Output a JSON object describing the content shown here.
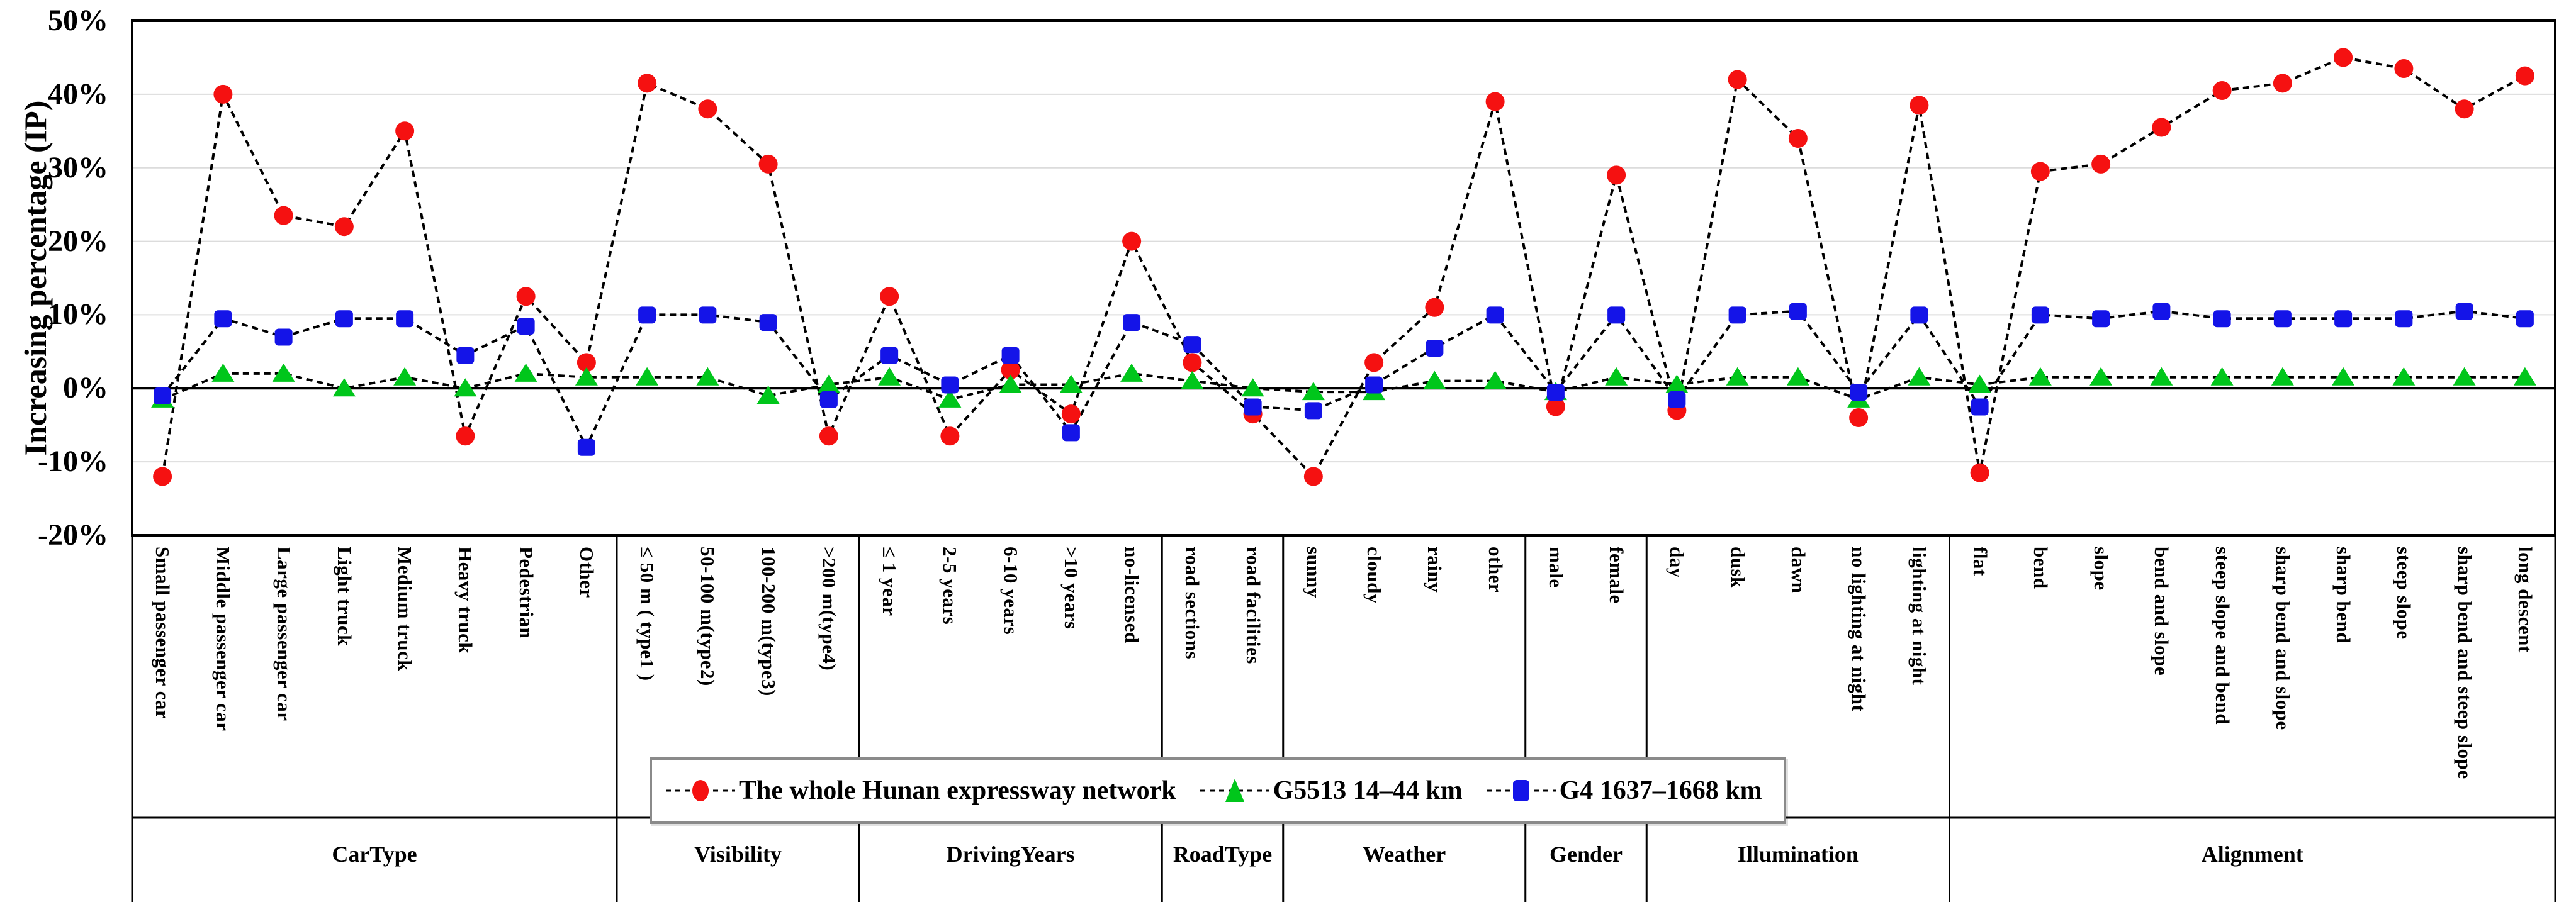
{
  "chart_data": {
    "type": "line",
    "title": "",
    "ylabel": "Increasing percentage (IP)",
    "xlabel": "",
    "ylim": [
      -20,
      50
    ],
    "ytick_step": 10,
    "y_ticks": [
      "50%",
      "40%",
      "30%",
      "20%",
      "10%",
      "0%",
      "-10%",
      "-20%"
    ],
    "grid": true,
    "gridline_color": "#dcdcdc",
    "line_color": "#000000",
    "line_style": "dashed",
    "legend_position": "bottom-center",
    "groups": [
      {
        "label": "CarType",
        "categories": [
          "Small passenger car",
          "Middle passenger car",
          "Large passenger car",
          "Light truck",
          "Medium truck",
          "Heavy truck",
          "Pedestrian",
          "Other"
        ]
      },
      {
        "label": "Visibility",
        "categories": [
          "≤ 50 m ( type1 )",
          "50-100 m(type2)",
          "100-200 m(type3)",
          ">200 m(type4)"
        ]
      },
      {
        "label": "DrivingYears",
        "categories": [
          "≤ 1 year",
          "2-5 years",
          "6-10 years",
          ">10 years",
          "no-licensed"
        ]
      },
      {
        "label": "RoadType",
        "categories": [
          "road sections",
          "road facilities"
        ]
      },
      {
        "label": "Weather",
        "categories": [
          "sunny",
          "cloudy",
          "rainy",
          "other"
        ]
      },
      {
        "label": "Gender",
        "categories": [
          "male",
          "female"
        ]
      },
      {
        "label": "Illumination",
        "categories": [
          "day",
          "dusk",
          "dawn",
          "no lighting at night",
          "lighting at night"
        ]
      },
      {
        "label": "Alignment",
        "categories": [
          "flat",
          "bend",
          "slope",
          "bend and slope",
          "steep slope and bend",
          "sharp bend and slope",
          "sharp bend",
          "steep slope",
          "sharp bend and steep slope",
          "long descent"
        ]
      }
    ],
    "series": [
      {
        "name": "The whole Hunan expressway network",
        "marker": "circle",
        "color": "#f51111",
        "values": [
          -12,
          40,
          23.5,
          22,
          35,
          -6.5,
          12.5,
          3.5,
          41.5,
          38,
          30.5,
          -6.5,
          12.5,
          -6.5,
          2.5,
          -3.5,
          20,
          3.5,
          -3.5,
          -12,
          3.5,
          11,
          39,
          -2.5,
          29,
          -3,
          42,
          34,
          -4,
          38.5,
          -11.5,
          29.5,
          30.5,
          35.5,
          40.5,
          41.5,
          45,
          43.5,
          38,
          42.5
        ]
      },
      {
        "name": "G5513 14–44 km",
        "marker": "triangle",
        "color": "#00c61b",
        "values": [
          -1.5,
          2,
          2,
          0,
          1.5,
          0,
          2,
          1.5,
          1.5,
          1.5,
          -1,
          0.5,
          1.5,
          -1.5,
          0.5,
          0.5,
          2,
          1,
          0,
          -0.5,
          -0.5,
          1,
          1,
          -0.5,
          1.5,
          0.5,
          1.5,
          1.5,
          -1.5,
          1.5,
          0.5,
          1.5,
          1.5,
          1.5,
          1.5,
          1.5,
          1.5,
          1.5,
          1.5,
          1.5
        ]
      },
      {
        "name": "G4 1637–1668 km",
        "marker": "square",
        "color": "#1414e8",
        "values": [
          -1,
          9.5,
          7,
          9.5,
          9.5,
          4.5,
          8.5,
          -8,
          10,
          10,
          9,
          -1.5,
          4.5,
          0.5,
          4.5,
          -6,
          9,
          6,
          -2.5,
          -3,
          0.5,
          5.5,
          10,
          -0.5,
          10,
          -1.5,
          10,
          10.5,
          -0.5,
          10,
          -2.5,
          10,
          9.5,
          10.5,
          9.5,
          9.5,
          9.5,
          9.5,
          10.5,
          9.5
        ]
      }
    ]
  }
}
